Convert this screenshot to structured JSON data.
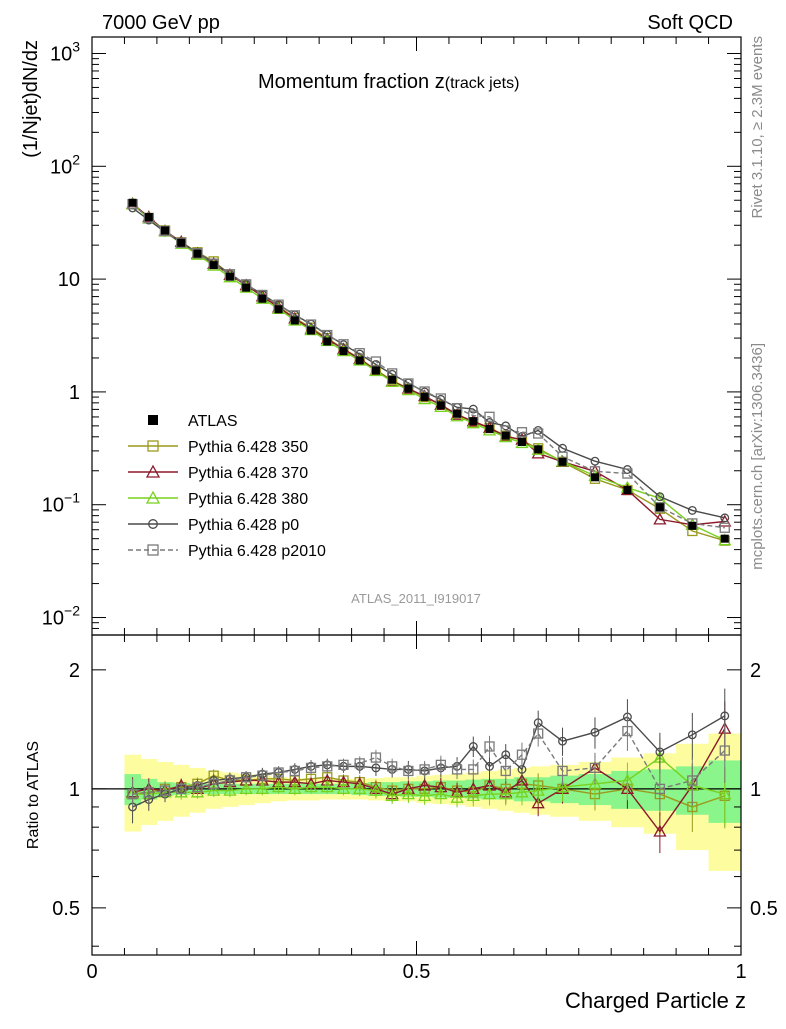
{
  "header": {
    "left": "7000 GeV pp",
    "right": "Soft QCD"
  },
  "side": {
    "rivet": "Rivet 3.1.10, ≥ 2.3M events",
    "site": "mcplots.cern.ch [arXiv:1306.3436]"
  },
  "chart_data": {
    "type": "line",
    "title": "Momentum fraction z(track jets)",
    "title_main": "Momentum fraction z",
    "title_sub": "(track jets)",
    "ylabel": "(1/Njet)dN/dz",
    "ratio_ylabel": "Ratio to ATLAS",
    "xlabel": "Charged Particle z",
    "analysis_tag": "ATLAS_2011_I919017",
    "xlim": [
      0,
      1
    ],
    "ylim": [
      0.007,
      1400
    ],
    "yscale": "log",
    "ratio_ylim": [
      0.38,
      2.45
    ],
    "ratio_yscale": "log",
    "x_ticks": [
      {
        "v": 0,
        "label": "0"
      },
      {
        "v": 0.5,
        "label": "0.5"
      },
      {
        "v": 1,
        "label": "1"
      }
    ],
    "y_tick_labels": [
      {
        "v": 0.01,
        "b": "10",
        "e": "−2"
      },
      {
        "v": 0.1,
        "b": "10",
        "e": "−1"
      },
      {
        "v": 1,
        "b": "1",
        "e": ""
      },
      {
        "v": 10,
        "b": "10",
        "e": ""
      },
      {
        "v": 100,
        "b": "10",
        "e": "2"
      },
      {
        "v": 1000,
        "b": "10",
        "e": "3"
      }
    ],
    "ratio_tick_labels": [
      {
        "v": 0.5,
        "label": "0.5"
      },
      {
        "v": 1,
        "label": "1"
      },
      {
        "v": 2,
        "label": "2"
      }
    ],
    "x": [
      0.0625,
      0.0875,
      0.1125,
      0.1375,
      0.1625,
      0.1875,
      0.2125,
      0.2375,
      0.2625,
      0.2875,
      0.3125,
      0.3375,
      0.3625,
      0.3875,
      0.4125,
      0.4375,
      0.4625,
      0.4875,
      0.5125,
      0.5375,
      0.5625,
      0.5875,
      0.6125,
      0.6375,
      0.6625,
      0.6875,
      0.725,
      0.775,
      0.825,
      0.875,
      0.925,
      0.975
    ],
    "data": {
      "name": "ATLAS",
      "values": [
        47.5,
        35.5,
        27.0,
        21.0,
        16.8,
        13.3,
        10.5,
        8.4,
        6.7,
        5.4,
        4.3,
        3.5,
        2.8,
        2.3,
        1.9,
        1.55,
        1.28,
        1.07,
        0.9,
        0.76,
        0.64,
        0.55,
        0.47,
        0.41,
        0.36,
        0.31,
        0.24,
        0.175,
        0.135,
        0.095,
        0.065,
        0.05
      ]
    },
    "series": [
      {
        "name": "Pythia 6.428 350",
        "color": "#9a9a1e",
        "marker": "square-open",
        "dash": "",
        "ratio": [
          0.97,
          0.98,
          1.0,
          1.01,
          1.03,
          1.08,
          1.05,
          1.05,
          1.06,
          1.06,
          1.05,
          1.06,
          1.07,
          1.05,
          1.04,
          1.01,
          0.99,
          1.0,
          1.0,
          1.01,
          0.99,
          0.98,
          1.02,
          1.0,
          1.03,
          1.02,
          1.0,
          0.97,
          1.0,
          0.97,
          0.9,
          0.96
        ]
      },
      {
        "name": "Pythia 6.428 370",
        "color": "#8b1a2a",
        "marker": "triangle-open",
        "dash": "",
        "ratio": [
          0.98,
          1.0,
          0.99,
          1.02,
          1.0,
          1.03,
          1.04,
          1.05,
          1.05,
          1.04,
          1.04,
          1.03,
          1.05,
          1.04,
          1.03,
          1.0,
          0.97,
          1.0,
          1.02,
          1.01,
          0.98,
          1.0,
          1.02,
          0.98,
          1.05,
          0.92,
          1.0,
          1.13,
          1.0,
          0.78,
          1.02,
          1.42
        ]
      },
      {
        "name": "Pythia 6.428 380",
        "color": "#78d11e",
        "marker": "triangle-open",
        "dash": "",
        "ratio": [
          0.97,
          0.97,
          0.98,
          0.98,
          0.98,
          0.99,
          0.99,
          1.0,
          1.0,
          1.01,
          1.0,
          1.01,
          1.01,
          1.0,
          1.0,
          0.99,
          0.96,
          0.97,
          0.96,
          0.97,
          0.95,
          0.96,
          0.97,
          0.97,
          0.98,
          0.99,
          1.01,
          1.03,
          1.05,
          1.2,
          1.02,
          0.97
        ]
      },
      {
        "name": "Pythia 6.428 p0",
        "color": "#4a4a4a",
        "marker": "circle-open",
        "dash": "",
        "ratio": [
          0.9,
          0.94,
          0.97,
          1.0,
          1.02,
          1.05,
          1.06,
          1.07,
          1.09,
          1.1,
          1.12,
          1.14,
          1.15,
          1.14,
          1.14,
          1.13,
          1.12,
          1.12,
          1.11,
          1.13,
          1.14,
          1.28,
          1.14,
          1.22,
          1.12,
          1.47,
          1.32,
          1.39,
          1.52,
          1.24,
          1.37,
          1.53
        ]
      },
      {
        "name": "Pythia 6.428 p2010",
        "color": "#7a7a7a",
        "marker": "square-open",
        "dash": "5,3",
        "ratio": [
          0.97,
          0.98,
          0.99,
          1.0,
          1.01,
          1.03,
          1.05,
          1.07,
          1.08,
          1.1,
          1.11,
          1.13,
          1.14,
          1.15,
          1.16,
          1.2,
          1.14,
          1.11,
          1.12,
          1.15,
          1.12,
          1.12,
          1.28,
          1.11,
          1.22,
          1.38,
          1.11,
          1.13,
          1.4,
          1.0,
          1.05,
          1.25
        ]
      }
    ],
    "bands": {
      "inner_color": "#8af58a",
      "outer_color": "#fdfda0",
      "inner": [
        0.09,
        0.06,
        0.04,
        0.035,
        0.03,
        0.03,
        0.03,
        0.03,
        0.03,
        0.03,
        0.03,
        0.03,
        0.03,
        0.03,
        0.035,
        0.04,
        0.04,
        0.045,
        0.045,
        0.05,
        0.05,
        0.055,
        0.06,
        0.06,
        0.07,
        0.07,
        0.08,
        0.09,
        0.11,
        0.12,
        0.14,
        0.18
      ],
      "outer": [
        0.22,
        0.19,
        0.17,
        0.15,
        0.13,
        0.11,
        0.1,
        0.09,
        0.08,
        0.07,
        0.065,
        0.065,
        0.06,
        0.06,
        0.06,
        0.065,
        0.07,
        0.07,
        0.08,
        0.085,
        0.09,
        0.1,
        0.11,
        0.12,
        0.13,
        0.14,
        0.15,
        0.17,
        0.2,
        0.23,
        0.3,
        0.38
      ]
    }
  }
}
